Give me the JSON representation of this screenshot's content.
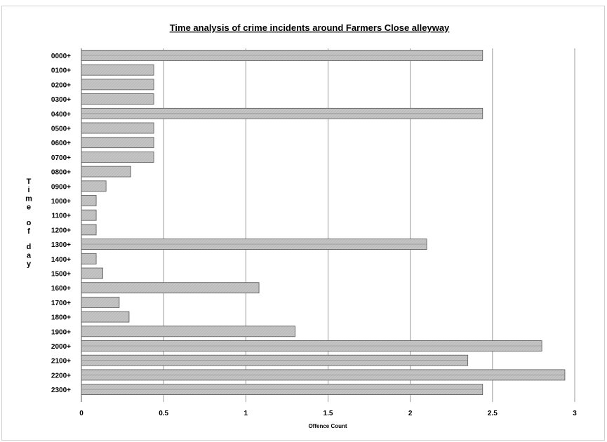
{
  "chart_data": {
    "type": "bar",
    "orientation": "horizontal",
    "title": "Time analysis of crime incidents around Farmers Close alleyway",
    "xlabel": "Offence Count",
    "ylabel": "Time of day",
    "xlim": [
      0,
      3
    ],
    "xticks": [
      0,
      0.5,
      1,
      1.5,
      2,
      2.5,
      3
    ],
    "xtick_labels": [
      "0",
      "0.5",
      "1",
      "1.5",
      "2",
      "2.5",
      "3"
    ],
    "grid": "vertical",
    "legend": "none",
    "bar_color": "#c8c8c8",
    "categories": [
      "0000+",
      "0100+",
      "0200+",
      "0300+",
      "0400+",
      "0500+",
      "0600+",
      "0700+",
      "0800+",
      "0900+",
      "1000+",
      "1100+",
      "1200+",
      "1300+",
      "1400+",
      "1500+",
      "1600+",
      "1700+",
      "1800+",
      "1900+",
      "2000+",
      "2100+",
      "2200+",
      "2300+"
    ],
    "values": [
      2.44,
      0.44,
      0.44,
      0.44,
      2.44,
      0.44,
      0.44,
      0.44,
      0.3,
      0.15,
      0.09,
      0.09,
      0.09,
      2.1,
      0.09,
      0.13,
      1.08,
      0.23,
      0.29,
      1.3,
      2.8,
      2.35,
      2.94,
      2.44
    ]
  }
}
